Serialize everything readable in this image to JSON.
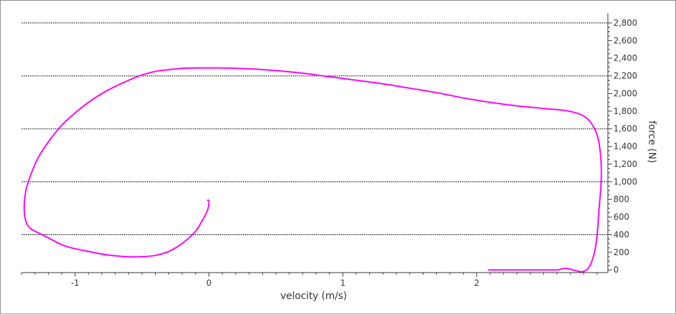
{
  "chart_data": {
    "type": "line",
    "title": "",
    "xlabel": "velocity (m/s)",
    "ylabel": "force (N)",
    "xlim": [
      -1.4,
      2.98
    ],
    "ylim": [
      -30,
      2910
    ],
    "x_ticks": [
      -1,
      0,
      1,
      2
    ],
    "x_tick_labels": [
      "-1",
      "0",
      "1",
      "2"
    ],
    "y_ticks": [
      0,
      200,
      400,
      600,
      800,
      1000,
      1200,
      1400,
      1600,
      1800,
      2000,
      2200,
      2400,
      2600,
      2800
    ],
    "y_tick_labels": [
      "0",
      "200",
      "400",
      "600",
      "800",
      "1,000",
      "1,200",
      "1,400",
      "1,600",
      "1,800",
      "2,000",
      "2,200",
      "2,400",
      "2,600",
      "2,800"
    ],
    "gridlines_y": [
      400,
      1000,
      1600,
      2200,
      2800
    ],
    "y_axis_position": "right",
    "grid": "horizontal dashed",
    "legend": "none",
    "series": [
      {
        "color": "#ff00ff",
        "x": [
          2.09,
          2.2,
          2.3,
          2.4,
          2.5,
          2.6,
          2.66,
          2.72,
          2.78,
          2.82,
          2.85,
          2.88,
          2.9,
          2.915,
          2.93,
          2.93,
          2.92,
          2.9,
          2.87,
          2.83,
          2.78,
          2.72,
          2.65,
          2.5,
          2.3,
          2.1,
          1.9,
          1.7,
          1.5,
          1.3,
          1.1,
          0.9,
          0.7,
          0.5,
          0.3,
          0.1,
          0.0,
          -0.1,
          -0.2,
          -0.3,
          -0.4,
          -0.5,
          -0.6,
          -0.7,
          -0.8,
          -0.9,
          -1.0,
          -1.1,
          -1.2,
          -1.28,
          -1.34,
          -1.37,
          -1.38,
          -1.37,
          -1.34,
          -1.3,
          -1.22,
          -1.12,
          -1.05,
          -1.0,
          -0.9,
          -0.8,
          -0.7,
          -0.6,
          -0.5,
          -0.4,
          -0.3,
          -0.2,
          -0.1,
          -0.05,
          -0.01,
          0.0,
          -0.01
        ],
        "y": [
          0,
          0,
          0,
          0,
          0,
          0,
          20,
          0,
          -20,
          0,
          60,
          200,
          400,
          700,
          1000,
          1200,
          1380,
          1530,
          1630,
          1710,
          1760,
          1790,
          1810,
          1830,
          1860,
          1900,
          1950,
          2010,
          2060,
          2110,
          2150,
          2190,
          2230,
          2260,
          2280,
          2290,
          2290,
          2290,
          2285,
          2270,
          2250,
          2210,
          2150,
          2080,
          2000,
          1900,
          1780,
          1640,
          1450,
          1260,
          1040,
          880,
          700,
          560,
          480,
          440,
          380,
          300,
          260,
          240,
          210,
          180,
          160,
          150,
          150,
          165,
          210,
          300,
          440,
          560,
          680,
          780,
          790
        ]
      }
    ]
  }
}
